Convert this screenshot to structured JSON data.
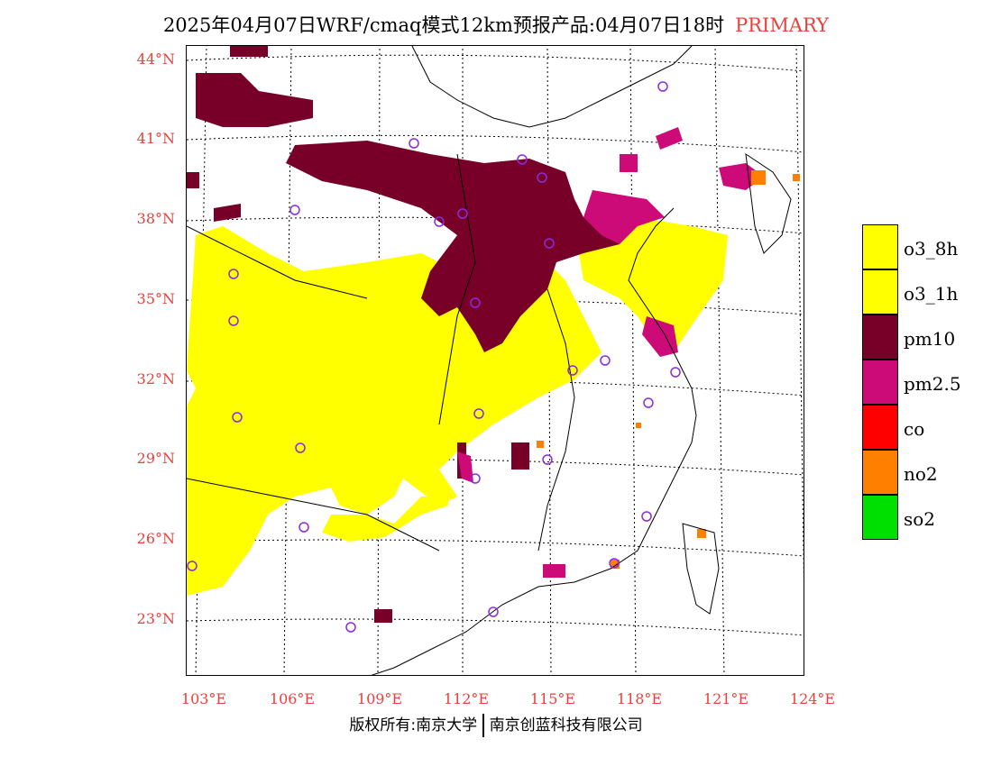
{
  "header": {
    "title": "2025年04月07日WRF/cmaq模式12km预报产品:04月07日18时",
    "primary_label": "PRIMARY"
  },
  "axes": {
    "lat_labels": [
      "44°N",
      "41°N",
      "38°N",
      "35°N",
      "32°N",
      "29°N",
      "26°N",
      "23°N"
    ],
    "lon_labels": [
      "103°E",
      "106°E",
      "109°E",
      "112°E",
      "115°E",
      "118°E",
      "121°E",
      "124°E"
    ]
  },
  "legend": [
    {
      "label": "o3_8h",
      "color": "#ffff00"
    },
    {
      "label": "o3_1h",
      "color": "#ffff00"
    },
    {
      "label": "pm10",
      "color": "#780028"
    },
    {
      "label": "pm2.5",
      "color": "#cc0a78"
    },
    {
      "label": "co",
      "color": "#ff0000"
    },
    {
      "label": "no2",
      "color": "#ff8000"
    },
    {
      "label": "so2",
      "color": "#00e000"
    }
  ],
  "footer": {
    "left": "版权所有:南京大学",
    "right": "南京创蓝科技有限公司"
  },
  "colors": {
    "axis_label": "#e8423c",
    "station_marker": "#8a2be2"
  }
}
